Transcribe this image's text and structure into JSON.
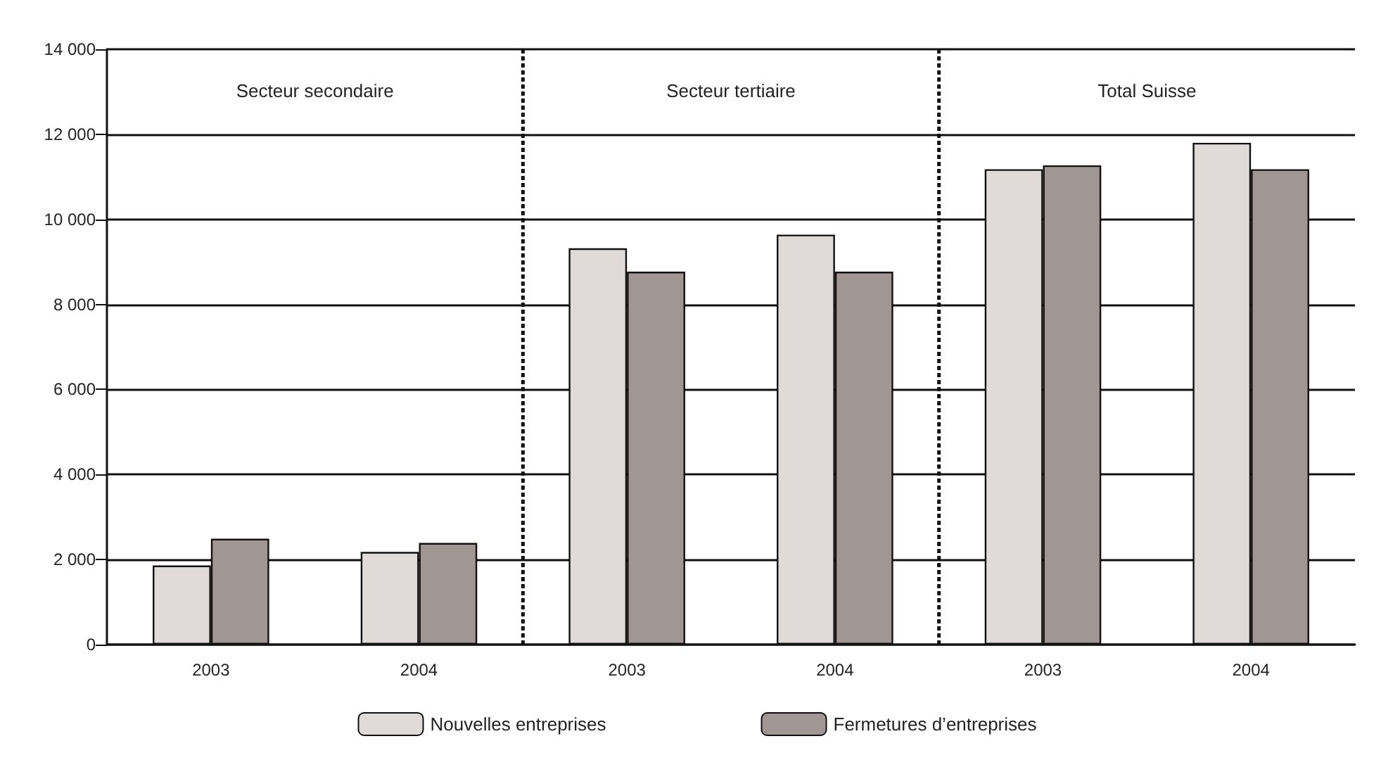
{
  "chart_data": {
    "type": "bar",
    "categories": [
      "2003",
      "2004",
      "2003",
      "2004",
      "2003",
      "2004"
    ],
    "series": [
      {
        "name": "Nouvelles entreprises",
        "color": "#e0dbd9",
        "values": [
          1860,
          2180,
          9320,
          9640,
          11180,
          11800
        ]
      },
      {
        "name": "Fermetures d’entreprises",
        "color": "#a09794",
        "values": [
          2490,
          2390,
          8770,
          8770,
          11270,
          11180
        ]
      }
    ],
    "annotations": [
      "Secteur secondaire",
      "Secteur tertiaire",
      "Total Suisse"
    ],
    "ylim": [
      0,
      14000
    ],
    "yticks": [
      {
        "value": 0,
        "label": "0"
      },
      {
        "value": 2000,
        "label": "2 000"
      },
      {
        "value": 4000,
        "label": "4 000"
      },
      {
        "value": 6000,
        "label": "6 000"
      },
      {
        "value": 8000,
        "label": "8 000"
      },
      {
        "value": 10000,
        "label": "10 000"
      },
      {
        "value": 12000,
        "label": "12 000"
      },
      {
        "value": 14000,
        "label": "14 000"
      }
    ],
    "grid": "y",
    "legend": "bottom"
  }
}
